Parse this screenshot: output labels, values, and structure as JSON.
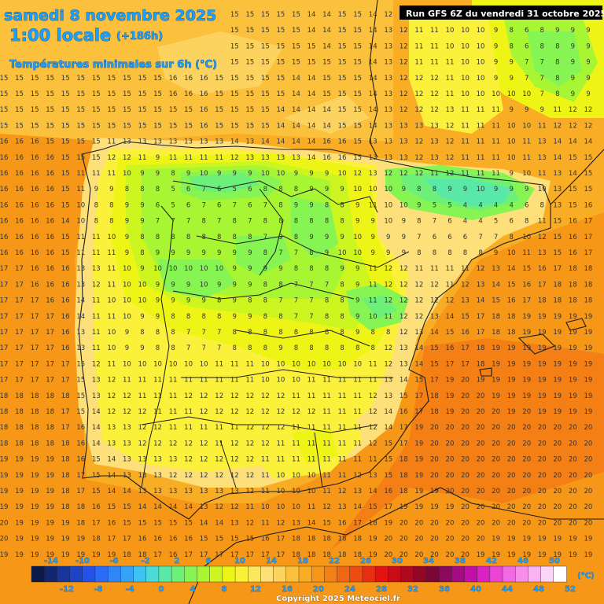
{
  "header": {
    "date": "samedi 8 novembre 2025",
    "time": "1:00 locale",
    "offset": "(+186h)",
    "subtitle": "Températures minimales sur 6h (°C)",
    "run": "Run GFS 6Z du vendredi 31 octobre 2025"
  },
  "legend": {
    "unit": "(°C)",
    "top_labels": [
      "-14",
      "-10",
      "-6",
      "-2",
      "2",
      "6",
      "10",
      "14",
      "18",
      "22",
      "26",
      "30",
      "34",
      "38",
      "42",
      "46",
      "50"
    ],
    "bottom_labels": [
      "-12",
      "-8",
      "-4",
      "0",
      "4",
      "8",
      "12",
      "16",
      "20",
      "24",
      "28",
      "32",
      "36",
      "40",
      "44",
      "48",
      "52"
    ],
    "colors": [
      "#0b1a4a",
      "#12286e",
      "#18369a",
      "#1d44c4",
      "#2352ea",
      "#2a6cf7",
      "#2f87f7",
      "#35a4f7",
      "#3ec2f2",
      "#4adbd8",
      "#5ae8a8",
      "#6cf07a",
      "#86f452",
      "#a8f534",
      "#cdf51f",
      "#eef516",
      "#fbf03a",
      "#fbe85e",
      "#fde07a",
      "#fbd35e",
      "#fbc13c",
      "#f9ad24",
      "#f79717",
      "#f47f14",
      "#f06613",
      "#ec4b12",
      "#e82e12",
      "#e21413",
      "#c80c18",
      "#ad0a1d",
      "#900823",
      "#7a0735",
      "#8a0a5c",
      "#a50c84",
      "#c20fa6",
      "#da22c2",
      "#eb45d6",
      "#f26ae2",
      "#f68fea",
      "#fab3f1",
      "#fcd5f7",
      "#ffffff"
    ]
  },
  "copyright": "Copyright 2025 Meteociel.fr",
  "grid": {
    "x0": 5,
    "dx": 19.55,
    "y0": 21,
    "dy": 20.2,
    "rows": [
      "15 15 15 15 15 15 15 15 14 14 15 15 15 15 15 15 15 15 15 15 14 14 15 15 14 12 10 10 10 10 10 10 9 8 6 8 9 9 9 9",
      "15 15 15 15 15 15 15 15 15 15 15 15 15 15 15 15 15 15 15 15 14 14 15 15 14 13 12 11 11 10 10 10 9 8 6 8 9 9 9 9",
      "15 15 15 15 15 15 15 15 15 15 15 15 16 16 15 15 15 15 15 15 15 14 15 15 14 13 12 11 11 10 10 10 9 8 6 8 8 9 9 9",
      "15 15 15 15 15 15 15 15 15 15 15 16 16 16 15 15 15 15 15 15 15 15 15 15 14 13 12 11 11 11 10 10 9 9 7 7 8 9 9 9",
      "15 15 15 15 15 15 15 15 15 15 15 16 16 16 15 15 15 15 15 14 14 15 15 15 14 13 12 12 12 11 10 10 9 9 7 7 8 9 9 9",
      "15 15 15 15 15 15 15 15 15 15 15 16 16 16 15 15 15 15 15 14 14 15 15 15 14 13 12 12 12 11 10 10 10 10 10 7 8 9 9 9",
      "15 15 15 15 15 15 15 15 15 15 15 15 15 16 15 15 15 15 14 14 14 14 15 15 14 13 12 12 12 13 11 11 11 9 9 9 11 12 12 12",
      "15 15 15 15 15 15 15 15 15 15 15 15 15 16 15 15 15 15 14 14 14 14 15 15 14 13 13 13 13 12 11 11 11 10 10 11 12 12 12 12",
      "16 16 16 15 15 15 15 11 13 13 13 13 13 13 13 14 13 14 14 14 14 16 16 15 13 13 13 12 13 12 11 11 11 10 11 13 14 14 14 14",
      "16 16 16 16 15 15 15 12 12 11 9 11 11 11 11 12 13 13 13 13 14 16 16 15 13 13 13 12 13 12 11 11 11 10 11 13 14 15 15 15",
      "16 16 16 16 15 11 11 11 10 9 9 8 9 10 9 9 9 10 10 9 9 9 10 12 13 12 12 12 11 12 11 11 11 9 10 11 13 14 15 15",
      "16 16 16 16 15 11 9 9 8 8 8 5 6 7 6 5 6 8 8 8 9 9 9 10 10 10 9 8 8 9 9 10 9 9 9 10 13 15 15 15",
      "16 16 16 16 15 10 8 8 9 9 6 5 6 7 6 7 6 7 8 9 9 8 8 9 11 10 10 9 5 5 4 4 4 4 6 8 13 15 16 17",
      "16 16 16 16 14 10 8 8 9 9 7 7 7 8 7 8 7 8 8 8 8 8 8 9 9 10 9 8 7 6 4 4 5 6 8 11 15 16 17 17",
      "16 16 16 16 15 11 11 10 9 8 8 8 8 8 8 8 8 7 9 8 9 9 9 10 9 9 9 7 6 6 6 7 7 8 10 12 15 16 17 17",
      "16 16 16 16 15 11 11 11 9 8 9 9 9 9 9 9 9 8 7 7 8 9 10 10 9 9 9 8 8 8 8 8 9 10 11 13 15 16 17 17",
      "17 17 16 16 16 13 13 11 10 9 10 10 10 10 10 9 9 9 9 8 8 8 9 9 11 12 12 11 11 11 11 12 13 14 15 16 17 18 18 18",
      "17 17 16 16 16 13 12 11 10 10 9 9 9 10 9 9 9 8 8 7 7 7 8 9 11 12 12 12 12 11 12 13 14 15 16 17 18 18 18 18",
      "17 17 17 16 16 14 11 10 10 10 9 9 9 9 8 9 8 8 7 7 7 8 8 9 11 12 12 12 12 12 13 14 15 16 17 18 18 18 18 18",
      "17 17 17 17 16 14 11 11 10 9 9 8 8 8 8 9 9 8 8 7 7 8 8 9 10 11 12 12 13 14 15 17 18 18 19 19 19 19 19 19",
      "17 17 17 17 16 13 11 10 9 8 8 8 7 7 7 8 8 8 8 8 8 8 8 9 8 8 12 13 14 15 16 17 18 18 19 19 19 19 19 18",
      "17 17 17 17 16 13 11 10 9 9 8 8 7 7 7 8 8 8 9 8 8 8 8 8 8 12 13 14 15 16 17 18 19 19 19 19 19 19 19 18",
      "17 17 17 17 17 15 12 11 10 10 10 10 10 10 11 11 11 10 10 10 10 10 10 10 11 12 13 14 15 17 17 18 19 19 19 19 19 19 19 18",
      "17 17 17 17 17 15 13 12 11 11 11 11 11 11 11 11 11 10 10 10 11 11 11 11 11 13 14 15 17 19 20 19 19 19 19 19 19 19 19 18",
      "18 18 18 18 18 15 13 12 12 11 11 11 12 12 12 12 12 12 12 11 11 11 11 11 12 13 15 17 18 19 20 20 19 19 19 19 19 19 19 19",
      "18 18 18 18 17 15 14 12 12 12 11 11 11 12 12 12 12 12 12 12 12 11 11 11 12 14 16 17 18 19 20 20 20 19 20 19 19 19 19 19",
      "18 18 18 18 17 16 14 13 13 12 12 11 11 11 11 11 12 12 12 11 11 11 11 11 12 14 17 19 20 20 20 20 20 20 20 20 20 20 20 20",
      "18 18 18 18 18 16 14 13 13 12 12 12 12 12 11 12 12 12 11 11 11 11 11 11 12 15 17 19 20 20 20 20 20 20 20 20 20 20 20 20",
      "19 19 19 19 18 16 15 14 13 13 13 13 12 12 12 12 12 11 11 11 11 11 11 11 11 15 18 19 20 20 20 20 20 20 20 20 20 20 20 20",
      "19 19 19 19 18 17 15 14 13 13 13 12 12 12 12 12 12 11 10 10 10 11 11 12 13 15 18 19 20 20 20 20 20 20 20 20 20 20 20 20",
      "19 19 19 19 18 17 15 14 14 13 13 13 13 13 13 13 12 11 10 10 10 11 12 13 14 16 18 19 19 20 20 20 20 20 20 20 20 20 20 20",
      "19 19 19 19 18 18 16 15 15 14 14 14 14 13 12 12 11 10 10 10 11 12 13 14 15 17 19 19 19 19 20 20 20 20 20 20 20 20 20 20",
      "20 19 19 19 19 18 17 16 15 15 15 15 15 14 14 13 12 11 12 13 14 15 16 17 18 19 20 20 20 20 20 20 20 20 20 20 20 20 20 20",
      "20 19 19 19 19 19 18 17 17 16 16 16 16 15 15 15 15 16 17 18 18 18 18 18 19 20 20 20 20 20 20 20 19 19 19 19 19 19 19 19",
      "19 19 19 19 19 19 19 19 18 18 17 16 17 17 17 17 17 17 17 18 18 18 18 18 19 20 20 20 20 20 20 19 19 19 19 19 19 19 19 19",
      "19 19 19 19 19 19 19 19 19 19 19 18 18 18 18 18 18 18 19 19 19 19 19 19 19 20 20 20 20 20 19 19 19 19 19 19 19 19 19 19",
      "19 19 19 19 19 19 19 19 19 19 19 19 19 19 19 19 19 19 19 19 19 19 19 19 19 19 19 19 19 19 19 19 19 19 19 19 19 19 19 19",
      "19 19 19 19 19 19 19 19 19 19 19 19 19 19 19 19 19 19 19 19 19 19 19 19 19 19 19 19 19 19 19 19 19 19 19 19 19 19 19 19"
    ]
  }
}
